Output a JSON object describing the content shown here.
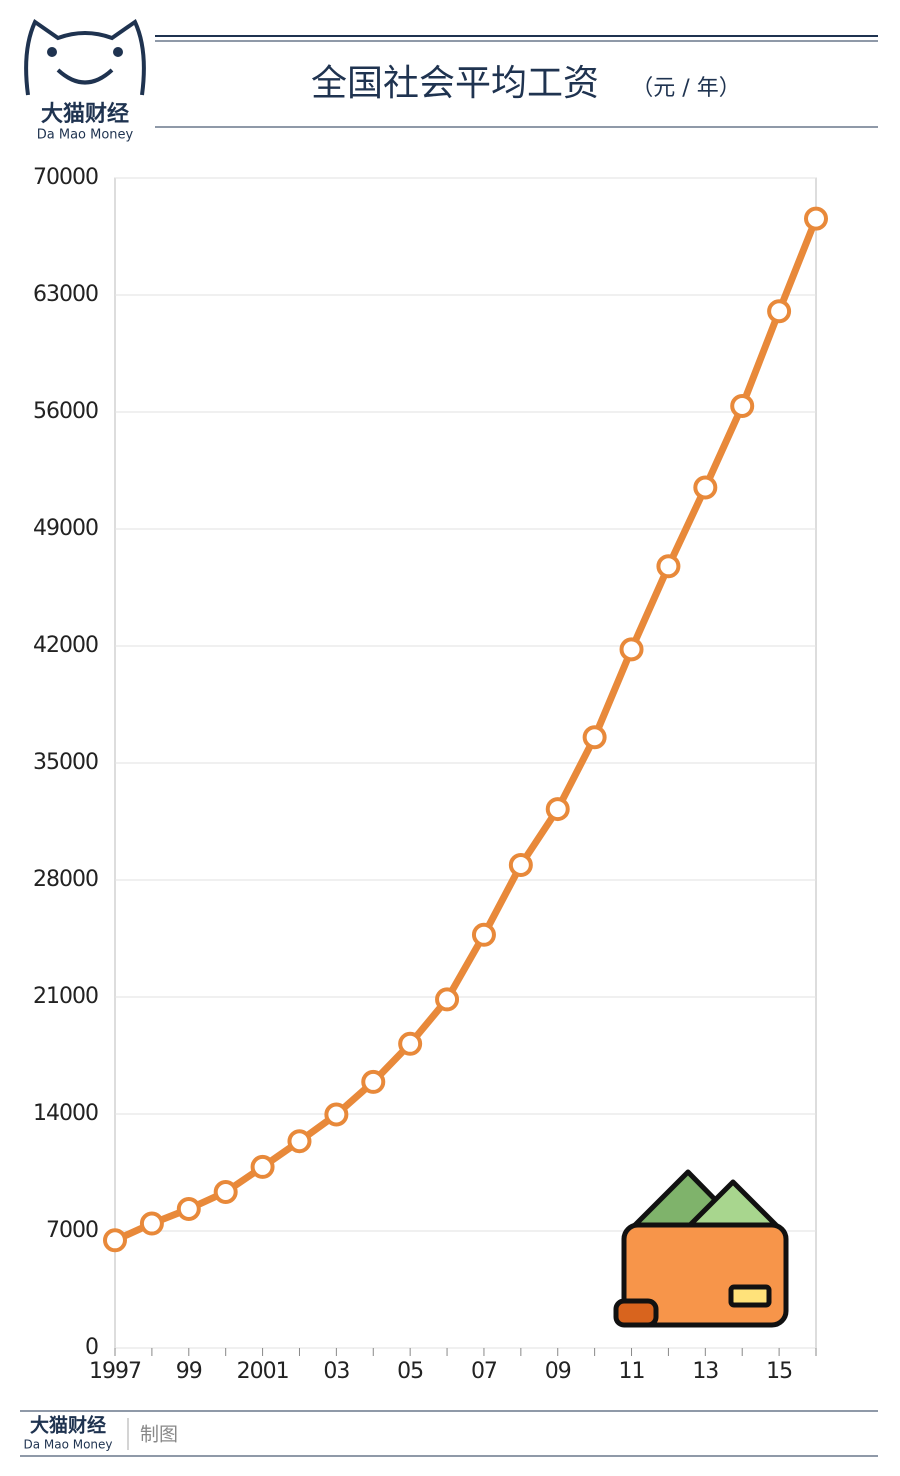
{
  "header": {
    "brand": "大猫财经",
    "brand_en": "Da Mao Money"
  },
  "chart_data": {
    "type": "line",
    "title": "全国社会平均工资",
    "subtitle": "（元 / 年）",
    "categories": [
      "1997",
      null,
      "99",
      null,
      "2001",
      null,
      "03",
      null,
      "05",
      null,
      "07",
      null,
      "09",
      null,
      "11",
      null,
      "13",
      null,
      "15",
      null
    ],
    "series": [
      {
        "name": "全国社会平均工资",
        "color": "#e8893a",
        "values": [
          6444,
          7446,
          8319,
          9333,
          10834,
          12373,
          13969,
          15920,
          18200,
          20856,
          24721,
          28898,
          32244,
          36539,
          41799,
          46769,
          51483,
          56360,
          62029,
          67569
        ]
      }
    ],
    "ylim": [
      0,
      70000
    ],
    "yticks": [
      0,
      7000,
      14000,
      21000,
      28000,
      35000,
      42000,
      49000,
      56000,
      63000,
      70000
    ],
    "grid": true
  },
  "footer": {
    "brand": "大猫财经",
    "brand_en": "Da Mao Money",
    "credit": "制图"
  }
}
